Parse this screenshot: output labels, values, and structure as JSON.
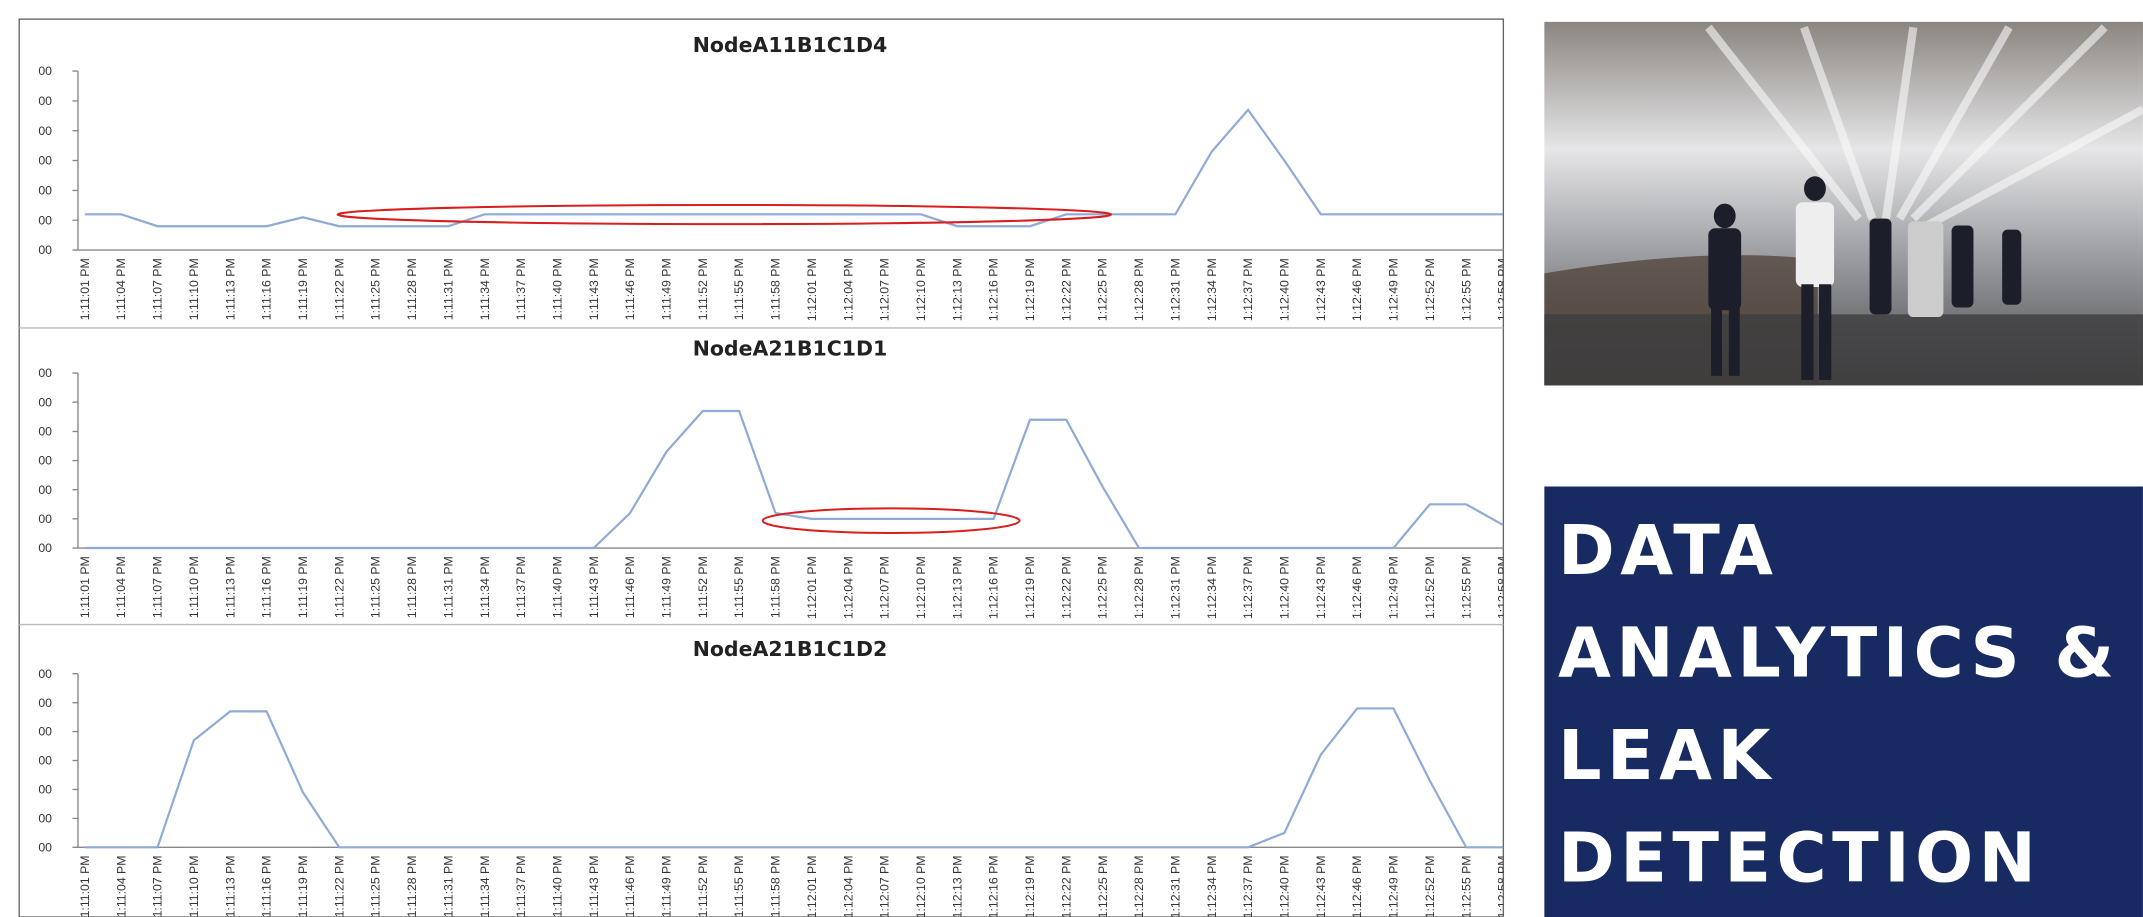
{
  "chart_data": [
    {
      "type": "line",
      "title": "NodeA11B1C1D4",
      "color": "#8faad6",
      "categories": [
        "1:11:01 PM",
        "1:11:04 PM",
        "1:11:07 PM",
        "1:11:10 PM",
        "1:11:13 PM",
        "1:11:16 PM",
        "1:11:19 PM",
        "1:11:22 PM",
        "1:11:25 PM",
        "1:11:28 PM",
        "1:11:31 PM",
        "1:11:34 PM",
        "1:11:37 PM",
        "1:11:40 PM",
        "1:11:43 PM",
        "1:11:46 PM",
        "1:11:49 PM",
        "1:11:52 PM",
        "1:11:55 PM",
        "1:11:58 PM",
        "1:12:01 PM",
        "1:12:04 PM",
        "1:12:07 PM",
        "1:12:10 PM",
        "1:12:13 PM",
        "1:12:16 PM",
        "1:12:19 PM",
        "1:12:22 PM",
        "1:12:25 PM",
        "1:12:28 PM",
        "1:12:31 PM",
        "1:12:34 PM",
        "1:12:37 PM",
        "1:12:40 PM",
        "1:12:43 PM",
        "1:12:46 PM",
        "1:12:49 PM",
        "1:12:52 PM",
        "1:12:55 PM",
        "1:12:58 PM"
      ],
      "values": [
        220,
        220,
        180,
        180,
        180,
        180,
        210,
        180,
        180,
        180,
        180,
        220,
        220,
        220,
        220,
        220,
        220,
        220,
        220,
        220,
        220,
        220,
        220,
        220,
        180,
        180,
        180,
        220,
        220,
        220,
        220,
        430,
        570,
        400,
        220,
        220,
        220,
        220,
        220,
        220
      ],
      "ylim": [
        100,
        700
      ],
      "yticks": [
        {
          "value": 100,
          "label": "00"
        },
        {
          "value": 200,
          "label": "00"
        },
        {
          "value": 300,
          "label": "00"
        },
        {
          "value": 400,
          "label": "00"
        },
        {
          "value": 500,
          "label": "00"
        },
        {
          "value": 600,
          "label": "00"
        },
        {
          "value": 700,
          "label": "00"
        }
      ]
    },
    {
      "type": "line",
      "title": "NodeA21B1C1D1",
      "color": "#8faad6",
      "categories": [
        "1:11:01 PM",
        "1:11:04 PM",
        "1:11:07 PM",
        "1:11:10 PM",
        "1:11:13 PM",
        "1:11:16 PM",
        "1:11:19 PM",
        "1:11:22 PM",
        "1:11:25 PM",
        "1:11:28 PM",
        "1:11:31 PM",
        "1:11:34 PM",
        "1:11:37 PM",
        "1:11:40 PM",
        "1:11:43 PM",
        "1:11:46 PM",
        "1:11:49 PM",
        "1:11:52 PM",
        "1:11:55 PM",
        "1:11:58 PM",
        "1:12:01 PM",
        "1:12:04 PM",
        "1:12:07 PM",
        "1:12:10 PM",
        "1:12:13 PM",
        "1:12:16 PM",
        "1:12:19 PM",
        "1:12:22 PM",
        "1:12:25 PM",
        "1:12:28 PM",
        "1:12:31 PM",
        "1:12:34 PM",
        "1:12:37 PM",
        "1:12:40 PM",
        "1:12:43 PM",
        "1:12:46 PM",
        "1:12:49 PM",
        "1:12:52 PM",
        "1:12:55 PM",
        "1:12:58 PM"
      ],
      "values": [
        100,
        100,
        100,
        100,
        100,
        100,
        100,
        100,
        100,
        100,
        100,
        100,
        100,
        100,
        100,
        220,
        430,
        570,
        570,
        220,
        200,
        200,
        200,
        200,
        200,
        200,
        540,
        540,
        310,
        100,
        100,
        100,
        100,
        100,
        100,
        100,
        100,
        250,
        250,
        180
      ],
      "ylim": [
        100,
        700
      ],
      "yticks": [
        {
          "value": 100,
          "label": "00"
        },
        {
          "value": 200,
          "label": "00"
        },
        {
          "value": 300,
          "label": "00"
        },
        {
          "value": 400,
          "label": "00"
        },
        {
          "value": 500,
          "label": "00"
        },
        {
          "value": 600,
          "label": "00"
        },
        {
          "value": 700,
          "label": "00"
        }
      ]
    },
    {
      "type": "line",
      "title": "NodeA21B1C1D2",
      "color": "#8faad6",
      "categories": [
        "1:11:01 PM",
        "1:11:04 PM",
        "1:11:07 PM",
        "1:11:10 PM",
        "1:11:13 PM",
        "1:11:16 PM",
        "1:11:19 PM",
        "1:11:22 PM",
        "1:11:25 PM",
        "1:11:28 PM",
        "1:11:31 PM",
        "1:11:34 PM",
        "1:11:37 PM",
        "1:11:40 PM",
        "1:11:43 PM",
        "1:11:46 PM",
        "1:11:49 PM",
        "1:11:52 PM",
        "1:11:55 PM",
        "1:11:58 PM",
        "1:12:01 PM",
        "1:12:04 PM",
        "1:12:07 PM",
        "1:12:10 PM",
        "1:12:13 PM",
        "1:12:16 PM",
        "1:12:19 PM",
        "1:12:22 PM",
        "1:12:25 PM",
        "1:12:28 PM",
        "1:12:31 PM",
        "1:12:34 PM",
        "1:12:37 PM",
        "1:12:40 PM",
        "1:12:43 PM",
        "1:12:46 PM",
        "1:12:49 PM",
        "1:12:52 PM",
        "1:12:55 PM",
        "1:12:58 PM"
      ],
      "values": [
        100,
        100,
        100,
        470,
        570,
        570,
        290,
        100,
        100,
        100,
        100,
        100,
        100,
        100,
        100,
        100,
        100,
        100,
        100,
        100,
        100,
        100,
        100,
        100,
        100,
        100,
        100,
        100,
        100,
        100,
        100,
        100,
        100,
        150,
        420,
        580,
        580,
        330,
        100,
        100
      ],
      "ylim": [
        100,
        700
      ],
      "yticks": [
        {
          "value": 100,
          "label": "00"
        },
        {
          "value": 200,
          "label": "00"
        },
        {
          "value": 300,
          "label": "00"
        },
        {
          "value": 400,
          "label": "00"
        },
        {
          "value": 500,
          "label": "00"
        },
        {
          "value": 600,
          "label": "00"
        },
        {
          "value": 700,
          "label": "00"
        }
      ]
    }
  ],
  "slide": {
    "title_lines": [
      "DATA",
      "ANALYTICS &",
      "LEAK",
      "DETECTION"
    ]
  }
}
